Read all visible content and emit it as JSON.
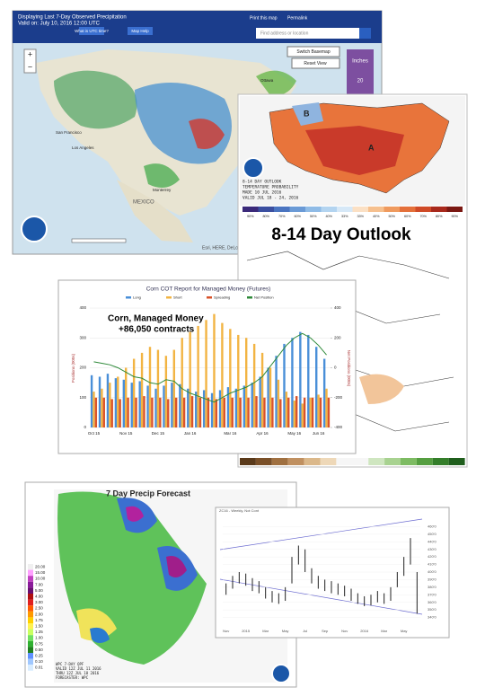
{
  "precip_map": {
    "title": "Displaying Last 7-Day Observed Precipitation",
    "valid": "Valid on: July 10, 2016 12:00 UTC",
    "buttons": [
      "What is UTC time?",
      "Map Help"
    ],
    "links": [
      "Print this map",
      "Permalink"
    ],
    "search": "Find address or location",
    "basemap": "Switch Basemap",
    "reset": "Reset View",
    "units": "Inches",
    "scale_top": "20",
    "labels": [
      "San Francisco",
      "Los Angeles",
      "MEXICO",
      "Monterrey",
      "Ottawa"
    ],
    "credit": "Esri, HERE, DeLo"
  },
  "outlook": {
    "banner": "8-14 Day Outlook",
    "caption": [
      "8-14 DAY OUTLOOK",
      "TEMPERATURE PROBABILITY",
      "MADE 10 JUL 2016",
      "VALID JUL 18 - 24, 2016"
    ],
    "region_labels": [
      "A",
      "B"
    ],
    "scale": [
      "90%",
      "80%",
      "70%",
      "60%",
      "50%",
      "40%",
      "33%",
      "33%",
      "40%",
      "50%",
      "60%",
      "70%",
      "80%",
      "90%"
    ]
  },
  "chart_data": [
    {
      "type": "bar",
      "title": "Corn COT Report for Managed Money (Futures)",
      "annotation": [
        "Corn, Managed Money",
        "+86,050 contracts"
      ],
      "ylabel": "Positions (000s)",
      "y2label": "Net Positions (000s)",
      "categories": [
        "Oct 15",
        null,
        null,
        null,
        "Nov 15",
        null,
        null,
        null,
        "Dec 15",
        null,
        null,
        null,
        "Jan 16",
        null,
        null,
        null,
        null,
        "Mar 16",
        null,
        null,
        null,
        "Apr 16",
        null,
        null,
        null,
        "May 16",
        null,
        null,
        "Jun 16",
        null
      ],
      "series": [
        {
          "name": "Long",
          "color": "#4a8fd8",
          "values": [
            175,
            170,
            180,
            165,
            160,
            150,
            155,
            140,
            130,
            140,
            150,
            145,
            130,
            120,
            125,
            115,
            125,
            135,
            130,
            140,
            150,
            170,
            200,
            240,
            280,
            300,
            320,
            310,
            270,
            230
          ]
        },
        {
          "name": "Short",
          "color": "#f2b443",
          "values": [
            120,
            130,
            150,
            170,
            200,
            230,
            250,
            270,
            260,
            240,
            260,
            300,
            320,
            340,
            360,
            380,
            350,
            330,
            310,
            300,
            280,
            250,
            200,
            160,
            120,
            90,
            80,
            100,
            110,
            130
          ]
        },
        {
          "name": "Spreading",
          "color": "#d9532b",
          "values": [
            100,
            100,
            95,
            95,
            100,
            100,
            105,
            100,
            100,
            95,
            100,
            100,
            105,
            100,
            100,
            95,
            100,
            100,
            100,
            100,
            105,
            100,
            100,
            95,
            100,
            105,
            100,
            100,
            100,
            100
          ]
        },
        {
          "name": "Net Position",
          "color": "#2f8a3a",
          "axis": "y2",
          "values": [
            40,
            30,
            20,
            0,
            -30,
            -60,
            -70,
            -100,
            -110,
            -80,
            -90,
            -140,
            -170,
            -190,
            -210,
            -230,
            -200,
            -170,
            -150,
            -130,
            -100,
            -60,
            10,
            80,
            150,
            200,
            230,
            200,
            150,
            86
          ]
        }
      ],
      "ylim": [
        0,
        400
      ],
      "yticks": [
        0,
        100,
        200,
        300,
        400
      ],
      "y2lim": [
        -400,
        400
      ],
      "y2ticks": [
        -400,
        -200,
        0,
        200,
        400
      ]
    },
    {
      "type": "ohlc",
      "title": "ZC16 - Weekly, Not Cont",
      "categories": [
        "Nov",
        null,
        null,
        "2015",
        null,
        null,
        "Mar",
        null,
        null,
        "May",
        null,
        null,
        "Jul",
        null,
        null,
        "Sep",
        null,
        null,
        "Nov",
        null,
        null,
        "2016",
        null,
        null,
        "Mar",
        null,
        null,
        "May",
        null,
        null
      ],
      "high": [
        385,
        395,
        400,
        398,
        392,
        388,
        380,
        375,
        372,
        380,
        420,
        435,
        430,
        405,
        395,
        390,
        388,
        385,
        382,
        378,
        372,
        368,
        370,
        375,
        372,
        380,
        400,
        420,
        445,
        400
      ],
      "low": [
        370,
        378,
        385,
        382,
        375,
        372,
        365,
        360,
        358,
        362,
        385,
        410,
        400,
        385,
        378,
        375,
        372,
        370,
        368,
        362,
        358,
        355,
        356,
        360,
        358,
        362,
        380,
        395,
        410,
        345
      ],
      "ylim": [
        330,
        470
      ],
      "yticks": [
        {
          "value": 340,
          "label": "340'0"
        },
        {
          "value": 350,
          "label": "350'0"
        },
        {
          "value": 360,
          "label": "360'0"
        },
        {
          "value": 370,
          "label": "370'0"
        },
        {
          "value": 380,
          "label": "380'0"
        },
        {
          "value": 390,
          "label": "390'0"
        },
        {
          "value": 400,
          "label": "400'0"
        },
        {
          "value": 410,
          "label": "410'0"
        },
        {
          "value": 420,
          "label": "420'0"
        },
        {
          "value": 430,
          "label": "430'0"
        },
        {
          "value": 440,
          "label": "440'0"
        },
        {
          "value": 450,
          "label": "450'0"
        },
        {
          "value": 460,
          "label": "460'0"
        }
      ]
    }
  ],
  "forecast_map": {
    "title": "7 Day Precip Forecast",
    "legend": [
      "20.00",
      "15.00",
      "10.00",
      "7.00",
      "5.00",
      "4.00",
      "3.00",
      "2.50",
      "2.00",
      "1.75",
      "1.50",
      "1.25",
      "1.00",
      "0.75",
      "0.50",
      "0.25",
      "0.10",
      "0.01"
    ],
    "caption": [
      "WPC 7-DAY QPF",
      "VALID 12Z JUL 11 2016",
      "THRU 12Z JUL 18 2016",
      "FORECASTER: WPC"
    ]
  }
}
